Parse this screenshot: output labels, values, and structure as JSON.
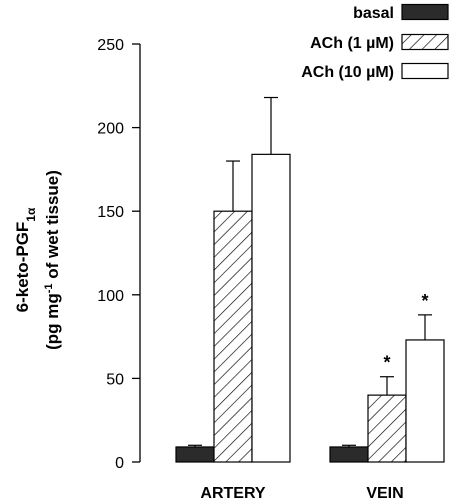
{
  "chart_data": {
    "type": "bar",
    "categories": [
      "ARTERY",
      "VEIN"
    ],
    "series": [
      {
        "name": "basal",
        "values": [
          9,
          9
        ],
        "errors": [
          1,
          1
        ],
        "fill": "solid",
        "color": "#2b2b2b"
      },
      {
        "name": "ACh (1 µM)",
        "values": [
          150,
          40
        ],
        "errors": [
          30,
          11
        ],
        "fill": "hatched",
        "color": "#000000"
      },
      {
        "name": "ACh (10 µM)",
        "values": [
          184,
          73
        ],
        "errors": [
          34,
          15
        ],
        "fill": "open",
        "color": "#ffffff"
      }
    ],
    "significance": [
      {
        "category": "VEIN",
        "series": "ACh (1 µM)",
        "mark": "*"
      },
      {
        "category": "VEIN",
        "series": "ACh (10 µM)",
        "mark": "*"
      }
    ],
    "ylabel_line1": "6-keto-PGF",
    "ylabel_sub": "1α",
    "ylabel_line2_a": "(pg mg",
    "ylabel_line2_sup": "-1",
    "ylabel_line2_b": " of wet tissue)",
    "ylim": [
      0,
      250
    ],
    "yticks": [
      "0",
      "50",
      "100",
      "150",
      "200",
      "250"
    ],
    "legend_position": "top-right",
    "grid": false
  }
}
